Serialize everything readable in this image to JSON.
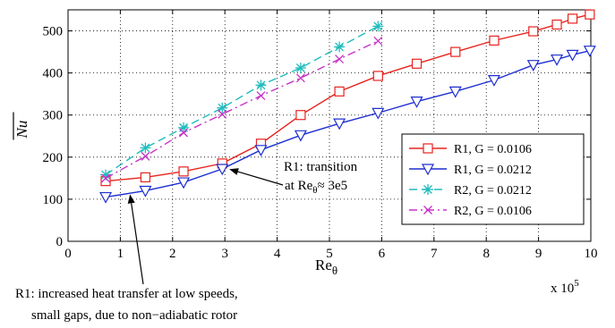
{
  "chart_data": {
    "type": "line",
    "xlabel_main": "Re",
    "xlabel_sub": "θ",
    "ylabel": "Nu",
    "x_multiplier": "x 10",
    "x_multiplier_exp": "5",
    "xlim": [
      0,
      10
    ],
    "ylim": [
      0,
      550
    ],
    "x_ticks": [
      0,
      1,
      2,
      3,
      4,
      5,
      6,
      7,
      8,
      9,
      10
    ],
    "y_ticks": [
      0,
      100,
      200,
      300,
      400,
      500
    ],
    "grid": true,
    "legend_position": "right",
    "series": [
      {
        "name": "R1, G = 0.0106",
        "color": "#e8231e",
        "marker": "square",
        "dash": "solid",
        "x": [
          0.72,
          1.48,
          2.21,
          2.95,
          3.69,
          4.45,
          5.19,
          5.93,
          6.67,
          7.41,
          8.15,
          8.9,
          9.35,
          9.65,
          9.98
        ],
        "y": [
          143,
          152,
          166,
          185,
          232,
          300,
          356,
          393,
          422,
          450,
          477,
          499,
          515,
          529,
          539
        ]
      },
      {
        "name": "R1, G = 0.0212",
        "color": "#1f2fd1",
        "marker": "triangle-down",
        "dash": "solid",
        "x": [
          0.72,
          1.48,
          2.21,
          2.95,
          3.69,
          4.45,
          5.19,
          5.93,
          6.67,
          7.41,
          8.15,
          8.9,
          9.35,
          9.65,
          9.98
        ],
        "y": [
          105,
          120,
          140,
          172,
          217,
          252,
          280,
          305,
          332,
          356,
          383,
          419,
          432,
          443,
          453
        ]
      },
      {
        "name": "R2, G = 0.0212",
        "color": "#21bcbc",
        "marker": "asterisk",
        "dash": "dash",
        "x": [
          0.72,
          1.48,
          2.21,
          2.95,
          3.69,
          4.45,
          5.19,
          5.93
        ],
        "y": [
          158,
          222,
          270,
          317,
          371,
          412,
          462,
          511
        ]
      },
      {
        "name": "R2, G = 0.0106",
        "color": "#c832c8",
        "marker": "x",
        "dash": "dashdot",
        "x": [
          0.72,
          1.48,
          2.21,
          2.95,
          3.69,
          4.45,
          5.19,
          5.93
        ],
        "y": [
          150,
          202,
          258,
          302,
          346,
          388,
          433,
          476
        ]
      }
    ],
    "annotations": [
      {
        "id": "transition",
        "lines": [
          "R1: transition",
          "at Re"
        ],
        "sub": "θ",
        "suffix": "≈ 3e5",
        "arrow_to": [
          3.05,
          180
        ]
      },
      {
        "id": "low-speed",
        "lines": [
          "R1: increased heat transfer at low speeds,",
          "small gaps, due to non−adiabatic rotor"
        ],
        "arrow_to": [
          1.22,
          118
        ]
      }
    ]
  }
}
